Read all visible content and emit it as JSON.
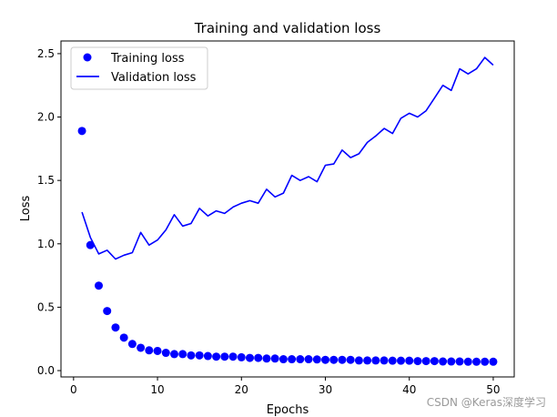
{
  "chart_data": {
    "type": "line",
    "title": "Training and validation loss",
    "xlabel": "Epochs",
    "ylabel": "Loss",
    "xlim": [
      -1.5,
      52.5
    ],
    "ylim": [
      -0.05,
      2.6
    ],
    "x_ticks": [
      0,
      10,
      20,
      30,
      40,
      50
    ],
    "y_ticks": [
      0.0,
      0.5,
      1.0,
      1.5,
      2.0,
      2.5
    ],
    "x_tick_labels": [
      "0",
      "10",
      "20",
      "30",
      "40",
      "50"
    ],
    "y_tick_labels": [
      "0.0",
      "0.5",
      "1.0",
      "1.5",
      "2.0",
      "2.5"
    ],
    "legend_position": "top-left",
    "series": [
      {
        "name": "Training loss",
        "style": "dots",
        "color": "#0000ff",
        "x": [
          1,
          2,
          3,
          4,
          5,
          6,
          7,
          8,
          9,
          10,
          11,
          12,
          13,
          14,
          15,
          16,
          17,
          18,
          19,
          20,
          21,
          22,
          23,
          24,
          25,
          26,
          27,
          28,
          29,
          30,
          31,
          32,
          33,
          34,
          35,
          36,
          37,
          38,
          39,
          40,
          41,
          42,
          43,
          44,
          45,
          46,
          47,
          48,
          49,
          50
        ],
        "values": [
          1.89,
          0.99,
          0.67,
          0.47,
          0.34,
          0.26,
          0.21,
          0.18,
          0.16,
          0.155,
          0.14,
          0.13,
          0.13,
          0.12,
          0.12,
          0.115,
          0.11,
          0.11,
          0.11,
          0.105,
          0.1,
          0.1,
          0.095,
          0.095,
          0.09,
          0.09,
          0.09,
          0.09,
          0.088,
          0.085,
          0.085,
          0.085,
          0.085,
          0.08,
          0.08,
          0.08,
          0.08,
          0.078,
          0.078,
          0.078,
          0.075,
          0.075,
          0.075,
          0.072,
          0.072,
          0.072,
          0.07,
          0.07,
          0.07,
          0.07
        ]
      },
      {
        "name": "Validation loss",
        "style": "line",
        "color": "#0000ff",
        "x": [
          1,
          2,
          3,
          4,
          5,
          6,
          7,
          8,
          9,
          10,
          11,
          12,
          13,
          14,
          15,
          16,
          17,
          18,
          19,
          20,
          21,
          22,
          23,
          24,
          25,
          26,
          27,
          28,
          29,
          30,
          31,
          32,
          33,
          34,
          35,
          36,
          37,
          38,
          39,
          40,
          41,
          42,
          43,
          44,
          45,
          46,
          47,
          48,
          49,
          50
        ],
        "values": [
          1.25,
          1.05,
          0.92,
          0.95,
          0.88,
          0.91,
          0.93,
          1.09,
          0.99,
          1.03,
          1.11,
          1.23,
          1.14,
          1.16,
          1.28,
          1.22,
          1.26,
          1.24,
          1.29,
          1.32,
          1.34,
          1.32,
          1.43,
          1.37,
          1.4,
          1.54,
          1.5,
          1.53,
          1.49,
          1.62,
          1.63,
          1.74,
          1.68,
          1.71,
          1.8,
          1.85,
          1.91,
          1.87,
          1.99,
          2.03,
          2.0,
          2.05,
          2.15,
          2.25,
          2.21,
          2.38,
          2.34,
          2.38,
          2.47,
          2.41
        ]
      }
    ]
  },
  "watermark": "CSDN @Keras深度学习"
}
